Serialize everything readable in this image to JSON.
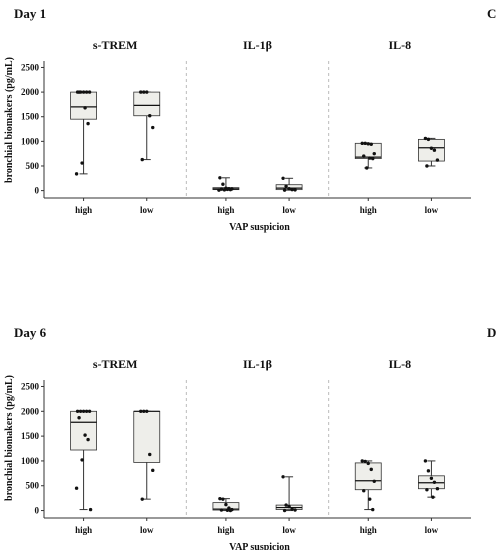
{
  "figure": {
    "corner_letters": [
      "C",
      "D"
    ],
    "axis_color": "#333333",
    "divider_color": "#bbbbbb",
    "box_fill": "#eeeeea",
    "box_stroke": "#333333",
    "point_color": "#111111"
  },
  "chart_data": [
    {
      "type": "box",
      "title": "Day 1",
      "xlabel": "VAP suspicion",
      "ylabel": "bronchial biomakers  (pg/mL)",
      "ylim": [
        -150,
        2550
      ],
      "yticks": [
        0,
        500,
        1000,
        1500,
        2000,
        2500
      ],
      "categories": [
        "high",
        "low"
      ],
      "grid": false,
      "facets": [
        {
          "name": "s-TREM",
          "groups": [
            {
              "category": "high",
              "min": 340,
              "q1": 1450,
              "median": 1700,
              "q3": 2000,
              "max": 2000,
              "points": [
                2000,
                2000,
                2000,
                2000,
                2000,
                2000,
                1680,
                1360,
                560,
                340
              ]
            },
            {
              "category": "low",
              "min": 630,
              "q1": 1520,
              "median": 1730,
              "q3": 2000,
              "max": 2000,
              "points": [
                2000,
                2000,
                2000,
                1520,
                1280,
                630
              ]
            }
          ]
        },
        {
          "name": "IL-1β",
          "groups": [
            {
              "category": "high",
              "min": 10,
              "q1": 20,
              "median": 35,
              "q3": 60,
              "max": 260,
              "points": [
                260,
                130,
                50,
                40,
                35,
                30,
                25,
                20,
                15,
                10
              ]
            },
            {
              "category": "low",
              "min": 10,
              "q1": 20,
              "median": 50,
              "q3": 120,
              "max": 250,
              "points": [
                250,
                90,
                40,
                20,
                15,
                10
              ]
            }
          ]
        },
        {
          "name": "IL-8",
          "groups": [
            {
              "category": "high",
              "min": 460,
              "q1": 650,
              "median": 680,
              "q3": 960,
              "max": 960,
              "points": [
                960,
                960,
                950,
                940,
                750,
                700,
                660,
                650,
                460
              ]
            },
            {
              "category": "low",
              "min": 500,
              "q1": 600,
              "median": 870,
              "q3": 1040,
              "max": 1060,
              "points": [
                1060,
                1040,
                860,
                820,
                620,
                500
              ]
            }
          ]
        }
      ]
    },
    {
      "type": "box",
      "title": "Day 6",
      "xlabel": "VAP suspicion",
      "ylabel": "bronchial biomakers  (pg/mL)",
      "ylim": [
        -150,
        2550
      ],
      "yticks": [
        0,
        500,
        1000,
        1500,
        2000,
        2500
      ],
      "categories": [
        "high",
        "low"
      ],
      "grid": false,
      "facets": [
        {
          "name": "s-TREM",
          "groups": [
            {
              "category": "high",
              "min": 20,
              "q1": 1220,
              "median": 1780,
              "q3": 2000,
              "max": 2000,
              "points": [
                2000,
                2000,
                2000,
                2000,
                2000,
                1870,
                1520,
                1430,
                1020,
                450,
                20
              ]
            },
            {
              "category": "low",
              "min": 230,
              "q1": 970,
              "median": 2000,
              "q3": 2000,
              "max": 2000,
              "points": [
                2000,
                2000,
                2000,
                1130,
                810,
                230
              ]
            }
          ]
        },
        {
          "name": "IL-1β",
          "groups": [
            {
              "category": "high",
              "min": 0,
              "q1": 10,
              "median": 30,
              "q3": 160,
              "max": 240,
              "points": [
                240,
                230,
                120,
                50,
                20,
                10,
                5,
                0
              ]
            },
            {
              "category": "low",
              "min": 0,
              "q1": 20,
              "median": 60,
              "q3": 110,
              "max": 680,
              "points": [
                680,
                110,
                80,
                30,
                10,
                0
              ]
            }
          ]
        },
        {
          "name": "IL-8",
          "groups": [
            {
              "category": "high",
              "min": 20,
              "q1": 420,
              "median": 600,
              "q3": 960,
              "max": 1000,
              "points": [
                1000,
                990,
                950,
                830,
                590,
                400,
                230,
                20
              ]
            },
            {
              "category": "low",
              "min": 270,
              "q1": 440,
              "median": 560,
              "q3": 700,
              "max": 1000,
              "points": [
                1000,
                800,
                650,
                570,
                440,
                420,
                270
              ]
            }
          ]
        }
      ]
    }
  ]
}
